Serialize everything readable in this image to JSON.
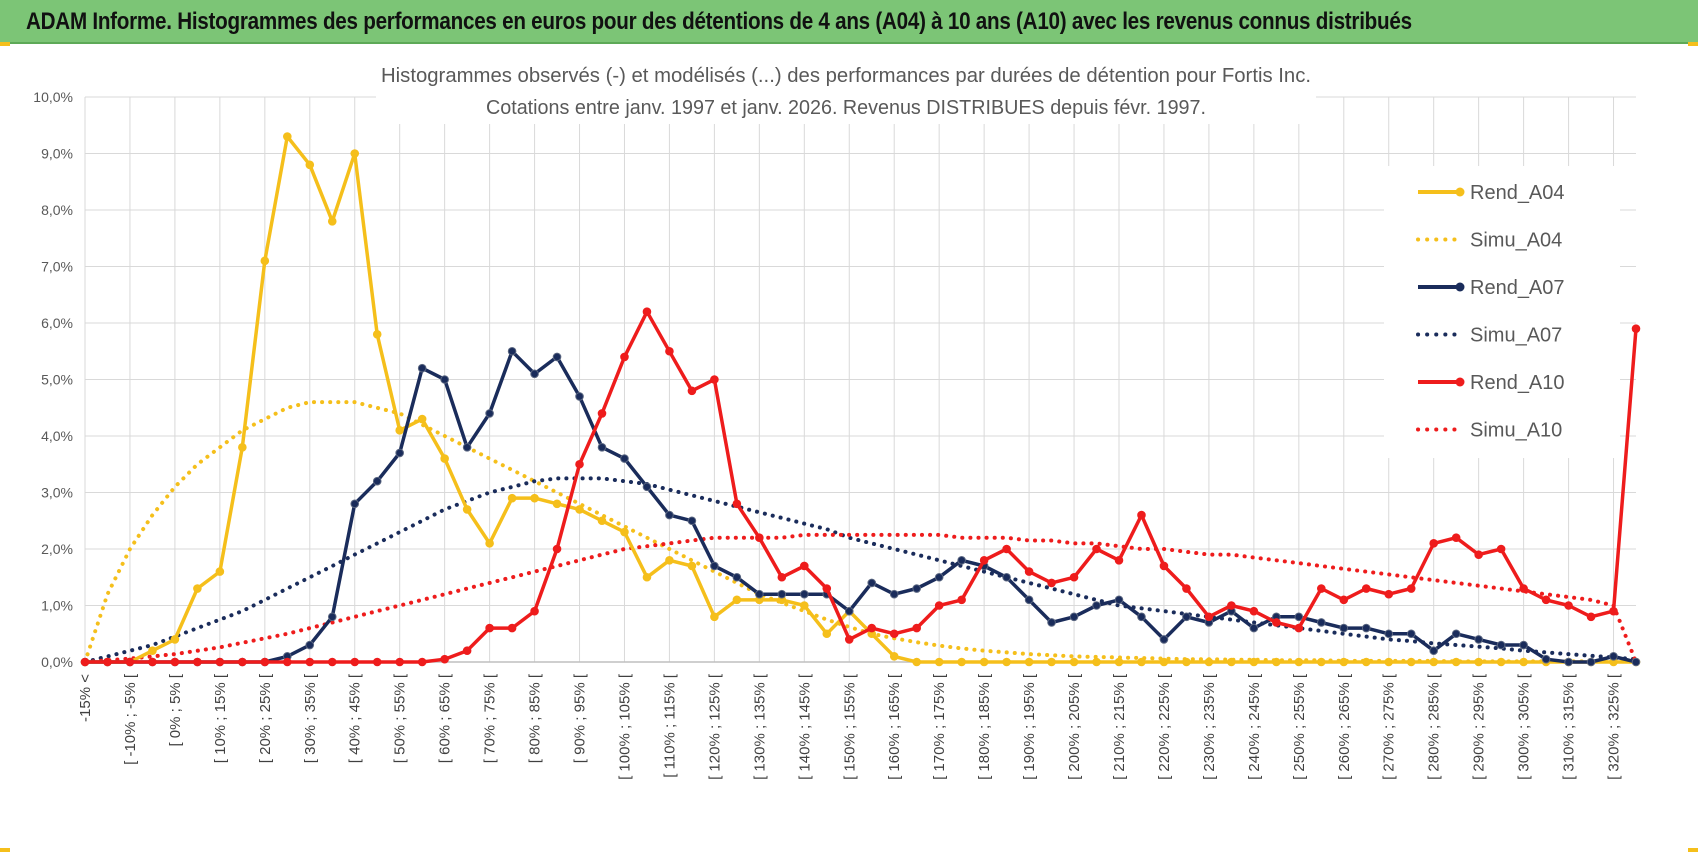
{
  "banner": {
    "title": "ADAM Informe. Histogrammes des performances en euros pour des détentions de 4 ans (A04) à 10 ans (A10) avec les revenus connus distribués"
  },
  "colors": {
    "banner": "#7cc576",
    "grid": "#d9d9d9",
    "axis": "#595959"
  },
  "chart_data": {
    "type": "line",
    "title": "Histogrammes observés (-) et modélisés (...) des performances par durées de détention pour Fortis Inc.",
    "subtitle": "Cotations entre janv. 1997 et janv. 2026. Revenus DISTRIBUES depuis févr. 1997.",
    "xlabel": "",
    "ylabel": "",
    "ylim": [
      0,
      10
    ],
    "yticks": [
      "0,0%",
      "1,0%",
      "2,0%",
      "3,0%",
      "4,0%",
      "5,0%",
      "6,0%",
      "7,0%",
      "8,0%",
      "9,0%",
      "10,0%"
    ],
    "grid": true,
    "legend_position": "right",
    "x_tick_labels": [
      "-15% <",
      "[ -10% ; -5% [",
      "[ 0% ; 5% [",
      "[ 10% ; 15% [",
      "[ 20% ; 25% [",
      "[ 30% ; 35% [",
      "[ 40% ; 45% [",
      "[ 50% ; 55% [",
      "[ 60% ; 65% [",
      "[ 70% ; 75% [",
      "[ 80% ; 85% [",
      "[ 90% ; 95% [",
      "[ 100% ; 105% [",
      "[ 110% ; 115% [",
      "[ 120% ; 125% [",
      "[ 130% ; 135% [",
      "[ 140% ; 145% [",
      "[ 150% ; 155% [",
      "[ 160% ; 165% [",
      "[ 170% ; 175% [",
      "[ 180% ; 185% [",
      "[ 190% ; 195% [",
      "[ 200% ; 205% [",
      "[ 210% ; 215% [",
      "[ 220% ; 225% [",
      "[ 230% ; 235% [",
      "[ 240% ; 245% [",
      "[ 250% ; 255% [",
      "[ 260% ; 265% [",
      "[ 270% ; 275% [",
      "[ 280% ; 285% [",
      "[ 290% ; 295% [",
      "[ 300% ; 305% [",
      "[ 310% ; 315% [",
      "[ 320% ; 325% ["
    ],
    "x_tick_step": 2,
    "series": [
      {
        "name": "Rend_A04",
        "style": "solid",
        "color": "#f5bf1b",
        "values": [
          0,
          0,
          0,
          0.2,
          0.4,
          1.3,
          1.6,
          3.8,
          7.1,
          9.3,
          8.8,
          7.8,
          9.0,
          5.8,
          4.1,
          4.3,
          3.6,
          2.7,
          2.1,
          2.9,
          2.9,
          2.8,
          2.7,
          2.5,
          2.3,
          1.5,
          1.8,
          1.7,
          0.8,
          1.1,
          1.1,
          1.1,
          1.0,
          0.5,
          0.9,
          0.5,
          0.1,
          0,
          0,
          0,
          0,
          0,
          0,
          0,
          0,
          0,
          0,
          0,
          0,
          0,
          0,
          0,
          0,
          0,
          0,
          0,
          0,
          0,
          0,
          0,
          0,
          0,
          0,
          0,
          0,
          0,
          0,
          0,
          0,
          0
        ]
      },
      {
        "name": "Simu_A04",
        "style": "dotted",
        "color": "#f5bf1b",
        "values": [
          0,
          1.2,
          2.0,
          2.6,
          3.1,
          3.5,
          3.8,
          4.1,
          4.3,
          4.5,
          4.6,
          4.6,
          4.6,
          4.5,
          4.4,
          4.2,
          4.0,
          3.8,
          3.6,
          3.4,
          3.2,
          3.0,
          2.8,
          2.6,
          2.4,
          2.2,
          2.0,
          1.8,
          1.6,
          1.4,
          1.2,
          1.05,
          0.9,
          0.75,
          0.62,
          0.5,
          0.42,
          0.35,
          0.29,
          0.24,
          0.2,
          0.17,
          0.14,
          0.12,
          0.1,
          0.09,
          0.08,
          0.07,
          0.06,
          0.05,
          0.05,
          0.04,
          0.04,
          0.03,
          0.03,
          0.03,
          0.02,
          0.02,
          0.02,
          0.02,
          0.02,
          0.01,
          0.01,
          0.01,
          0.01,
          0.01,
          0.01,
          0.01,
          0.01,
          0.01
        ]
      },
      {
        "name": "Rend_A07",
        "style": "solid",
        "color": "#1a2c5b",
        "values": [
          0,
          0,
          0,
          0,
          0,
          0,
          0,
          0,
          0,
          0.1,
          0.3,
          0.8,
          2.8,
          3.2,
          3.7,
          5.2,
          5.0,
          3.8,
          4.4,
          5.5,
          5.1,
          5.4,
          4.7,
          3.8,
          3.6,
          3.1,
          2.6,
          2.5,
          1.7,
          1.5,
          1.2,
          1.2,
          1.2,
          1.2,
          0.9,
          1.4,
          1.2,
          1.3,
          1.5,
          1.8,
          1.7,
          1.5,
          1.1,
          0.7,
          0.8,
          1.0,
          1.1,
          0.8,
          0.4,
          0.8,
          0.7,
          0.9,
          0.6,
          0.8,
          0.8,
          0.7,
          0.6,
          0.6,
          0.5,
          0.5,
          0.2,
          0.5,
          0.4,
          0.3,
          0.3,
          0.05,
          0,
          0,
          0.1,
          0
        ]
      },
      {
        "name": "Simu_A07",
        "style": "dotted",
        "color": "#1a2c5b",
        "values": [
          0,
          0.1,
          0.2,
          0.3,
          0.45,
          0.6,
          0.75,
          0.9,
          1.1,
          1.3,
          1.5,
          1.7,
          1.9,
          2.1,
          2.3,
          2.5,
          2.7,
          2.85,
          3.0,
          3.1,
          3.2,
          3.25,
          3.25,
          3.25,
          3.2,
          3.15,
          3.05,
          2.95,
          2.85,
          2.75,
          2.65,
          2.55,
          2.45,
          2.35,
          2.2,
          2.1,
          2.0,
          1.9,
          1.8,
          1.7,
          1.6,
          1.5,
          1.4,
          1.3,
          1.2,
          1.1,
          1.0,
          0.95,
          0.9,
          0.85,
          0.8,
          0.75,
          0.7,
          0.65,
          0.6,
          0.55,
          0.5,
          0.45,
          0.4,
          0.37,
          0.33,
          0.3,
          0.27,
          0.24,
          0.2,
          0.17,
          0.14,
          0.11,
          0.08,
          0.05
        ]
      },
      {
        "name": "Rend_A10",
        "style": "solid",
        "color": "#ee1c1c",
        "values": [
          0,
          0,
          0,
          0,
          0,
          0,
          0,
          0,
          0,
          0,
          0,
          0,
          0,
          0,
          0,
          0,
          0.05,
          0.2,
          0.6,
          0.6,
          0.9,
          2.0,
          3.5,
          4.4,
          5.4,
          6.2,
          5.5,
          4.8,
          5.0,
          2.8,
          2.2,
          1.5,
          1.7,
          1.3,
          0.4,
          0.6,
          0.5,
          0.6,
          1.0,
          1.1,
          1.8,
          2.0,
          1.6,
          1.4,
          1.5,
          2.0,
          1.8,
          2.6,
          1.7,
          1.3,
          0.8,
          1.0,
          0.9,
          0.7,
          0.6,
          1.3,
          1.1,
          1.3,
          1.2,
          1.3,
          2.1,
          2.2,
          1.9,
          2.0,
          1.3,
          1.1,
          1.0,
          0.8,
          0.9,
          5.9
        ]
      },
      {
        "name": "Simu_A10",
        "style": "dotted",
        "color": "#ee1c1c",
        "values": [
          0,
          0.03,
          0.06,
          0.1,
          0.14,
          0.2,
          0.26,
          0.34,
          0.42,
          0.5,
          0.6,
          0.7,
          0.8,
          0.9,
          1.0,
          1.1,
          1.2,
          1.3,
          1.4,
          1.5,
          1.6,
          1.7,
          1.8,
          1.9,
          2.0,
          2.05,
          2.1,
          2.15,
          2.2,
          2.2,
          2.2,
          2.2,
          2.25,
          2.25,
          2.25,
          2.25,
          2.25,
          2.25,
          2.25,
          2.2,
          2.2,
          2.2,
          2.15,
          2.15,
          2.1,
          2.1,
          2.05,
          2.0,
          2.0,
          1.95,
          1.9,
          1.9,
          1.85,
          1.8,
          1.75,
          1.7,
          1.65,
          1.6,
          1.55,
          1.5,
          1.45,
          1.4,
          1.35,
          1.3,
          1.25,
          1.2,
          1.15,
          1.1,
          1.0,
          0.0
        ]
      }
    ]
  }
}
